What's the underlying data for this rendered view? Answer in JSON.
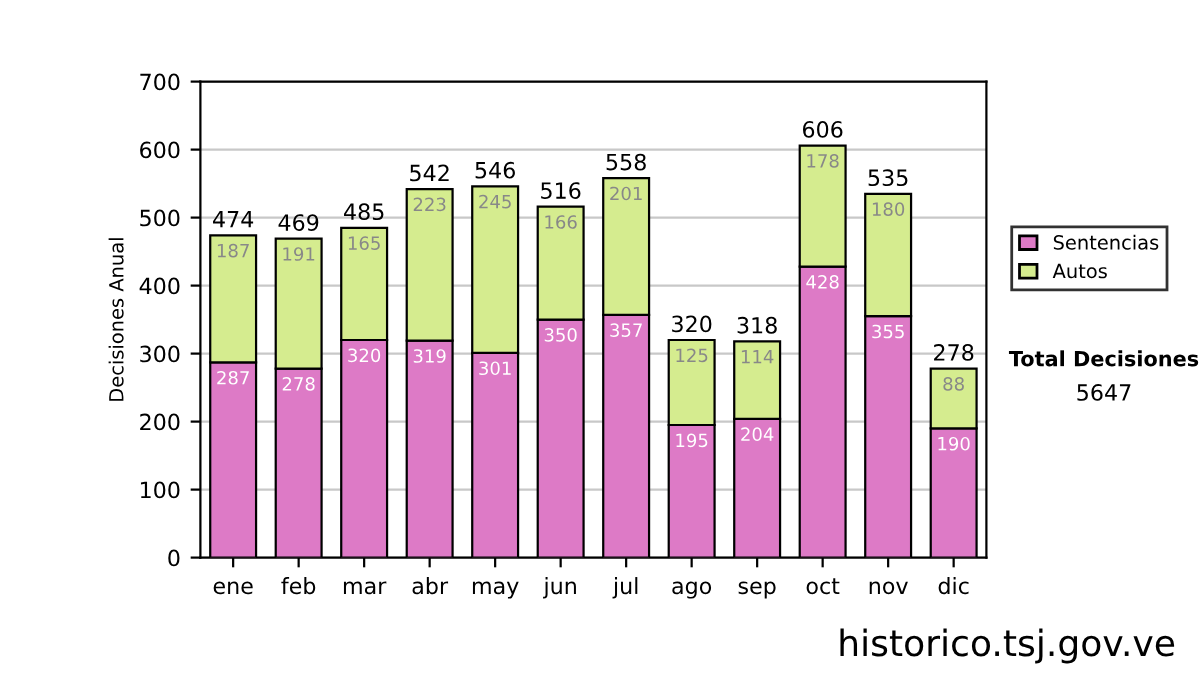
{
  "chart_data": {
    "type": "bar",
    "stacked": true,
    "ylabel": "Decisiones Anual",
    "categories": [
      "ene",
      "feb",
      "mar",
      "abr",
      "may",
      "jun",
      "jul",
      "ago",
      "sep",
      "oct",
      "nov",
      "dic"
    ],
    "series": [
      {
        "name": "Sentencias",
        "color": "#dd7ac6",
        "values": [
          287,
          278,
          320,
          319,
          301,
          350,
          357,
          195,
          204,
          428,
          355,
          190
        ]
      },
      {
        "name": "Autos",
        "color": "#d5ec8f",
        "values": [
          187,
          191,
          165,
          223,
          245,
          166,
          201,
          125,
          114,
          178,
          180,
          88
        ]
      }
    ],
    "totals": [
      "474",
      "469",
      "485",
      "542",
      "546",
      "516",
      "558",
      "320",
      "318",
      "606",
      "535",
      "278"
    ],
    "data_labels": true,
    "ylim": [
      0,
      700
    ],
    "yticks": [
      0,
      100,
      200,
      300,
      400,
      500,
      600,
      700
    ],
    "grid": "y",
    "legend": "right",
    "annotations": [
      "Total Decisiones",
      "5647",
      "historico.tsj.gov.ve"
    ]
  }
}
